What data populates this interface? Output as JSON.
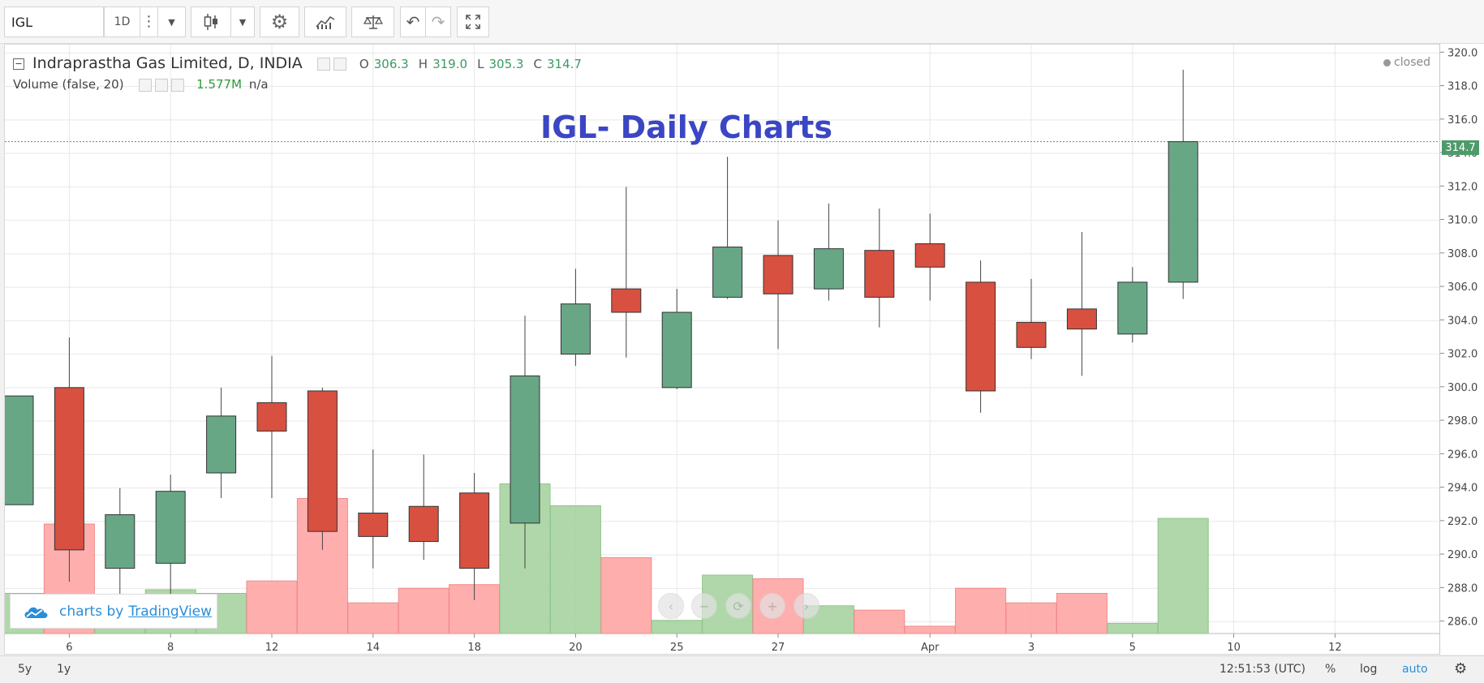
{
  "toolbar": {
    "symbol": "IGL",
    "interval": "1D"
  },
  "legend": {
    "name": "Indraprastha Gas Limited, D, INDIA",
    "o_label": "O",
    "o_value": "306.3",
    "h_label": "H",
    "h_value": "319.0",
    "l_label": "L",
    "l_value": "305.3",
    "c_label": "C",
    "c_value": "314.7",
    "volume_label": "Volume (false, 20)",
    "volume_value": "1.577M",
    "volume_na": "n/a"
  },
  "status": "closed",
  "watermark": {
    "prefix": "charts by",
    "brand": "TradingView"
  },
  "bottombar": {
    "range_5y": "5y",
    "range_1y": "1y",
    "clock": "12:51:53 (UTC)",
    "percent": "%",
    "log": "log",
    "auto": "auto"
  },
  "colors": {
    "up": "#68a785",
    "down": "#d85040",
    "up_volume": "#a7d3a0",
    "down_volume": "#ffa5a5",
    "title": "#3a46c4",
    "last_price": "#4f9a6a"
  },
  "chart_data": {
    "type": "candlestick",
    "title": "IGL- Daily Charts",
    "ylim": [
      285.3,
      320.5
    ],
    "y_ticks": [
      286,
      288,
      290,
      292,
      294,
      296,
      298,
      300,
      302,
      304,
      306,
      308,
      310,
      312,
      314,
      316,
      318,
      320
    ],
    "x_tick_labels": [
      "6",
      "8",
      "12",
      "14",
      "18",
      "20",
      "25",
      "27",
      "Apr",
      "3",
      "5",
      "10",
      "12"
    ],
    "last_price": 314.7,
    "last_price_label": "314.7",
    "candles": [
      {
        "open": 293.0,
        "high": 299.5,
        "low": 293.0,
        "close": 299.5,
        "volume": 0.55
      },
      {
        "open": 300.0,
        "high": 303.0,
        "low": 288.4,
        "close": 290.3,
        "volume": 1.5
      },
      {
        "open": 289.2,
        "high": 294.0,
        "low": 287.5,
        "close": 292.4,
        "volume": 0.4
      },
      {
        "open": 289.5,
        "high": 294.8,
        "low": 287.6,
        "close": 293.8,
        "volume": 0.6
      },
      {
        "open": 294.9,
        "high": 300.0,
        "low": 293.4,
        "close": 298.3,
        "volume": 0.55
      },
      {
        "open": 299.1,
        "high": 301.9,
        "low": 293.4,
        "close": 297.4,
        "volume": 0.72
      },
      {
        "open": 299.8,
        "high": 300.0,
        "low": 290.3,
        "close": 291.4,
        "volume": 1.85
      },
      {
        "open": 292.5,
        "high": 296.3,
        "low": 289.2,
        "close": 291.1,
        "volume": 0.42
      },
      {
        "open": 292.9,
        "high": 296.0,
        "low": 289.7,
        "close": 290.8,
        "volume": 0.62
      },
      {
        "open": 293.7,
        "high": 294.9,
        "low": 287.3,
        "close": 289.2,
        "volume": 0.67
      },
      {
        "open": 291.9,
        "high": 304.3,
        "low": 289.2,
        "close": 300.7,
        "volume": 2.05
      },
      {
        "open": 302.0,
        "high": 307.1,
        "low": 301.3,
        "close": 305.0,
        "volume": 1.75
      },
      {
        "open": 305.9,
        "high": 312.0,
        "low": 301.8,
        "close": 304.5,
        "volume": 1.04
      },
      {
        "open": 300.0,
        "high": 305.9,
        "low": 299.9,
        "close": 304.5,
        "volume": 0.18
      },
      {
        "open": 305.4,
        "high": 313.8,
        "low": 305.3,
        "close": 308.4,
        "volume": 0.8
      },
      {
        "open": 307.9,
        "high": 310.0,
        "low": 302.3,
        "close": 305.6,
        "volume": 0.75
      },
      {
        "open": 305.9,
        "high": 311.0,
        "low": 305.2,
        "close": 308.3,
        "volume": 0.38
      },
      {
        "open": 308.2,
        "high": 310.7,
        "low": 303.6,
        "close": 305.4,
        "volume": 0.32
      },
      {
        "open": 308.6,
        "high": 310.4,
        "low": 305.2,
        "close": 307.2,
        "volume": 0.1
      },
      {
        "open": 306.3,
        "high": 307.6,
        "low": 298.5,
        "close": 299.8,
        "volume": 0.62
      },
      {
        "open": 303.9,
        "high": 306.5,
        "low": 301.7,
        "close": 302.4,
        "volume": 0.42
      },
      {
        "open": 304.7,
        "high": 309.3,
        "low": 300.7,
        "close": 303.5,
        "volume": 0.55
      },
      {
        "open": 303.2,
        "high": 307.2,
        "low": 302.7,
        "close": 306.3,
        "volume": 0.14
      },
      {
        "open": 306.3,
        "high": 319.0,
        "low": 305.3,
        "close": 314.7,
        "volume": 1.577
      }
    ]
  }
}
